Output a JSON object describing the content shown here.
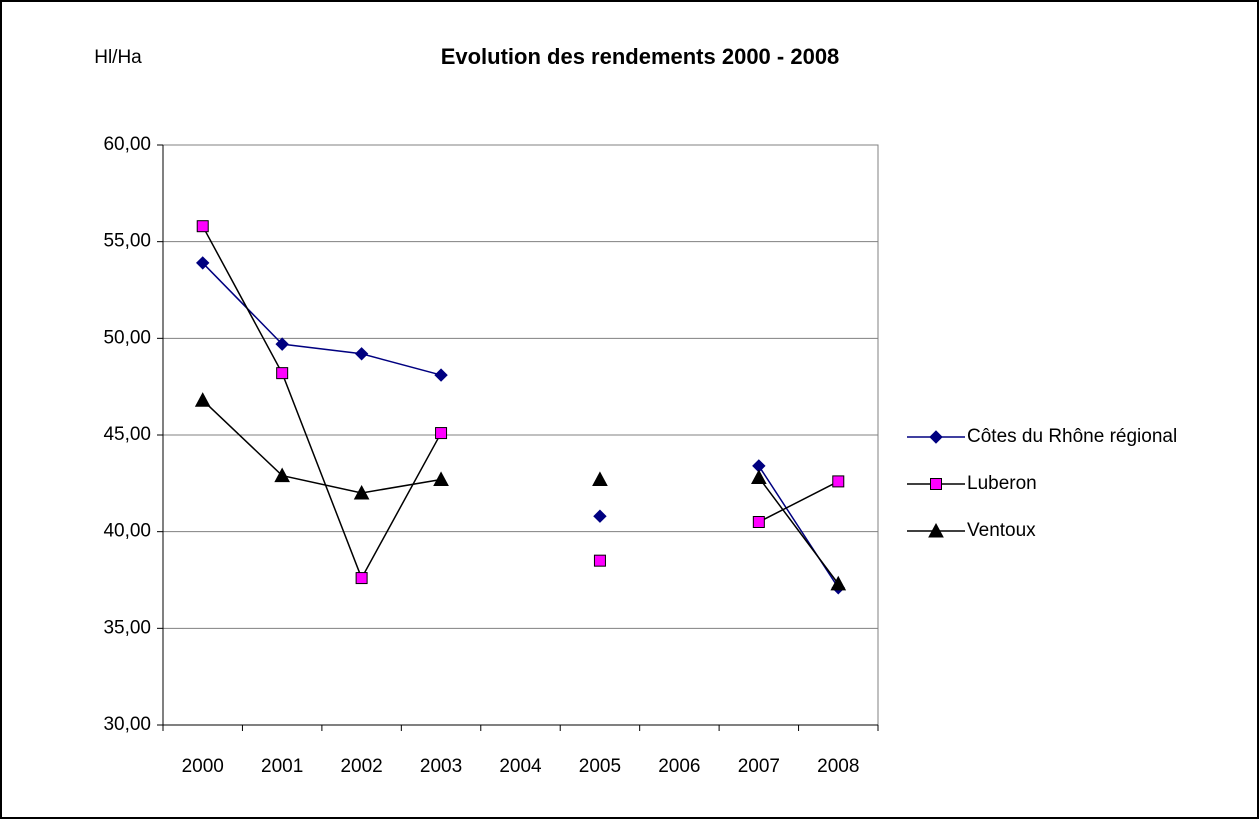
{
  "chart_data": {
    "type": "line",
    "title": "Evolution des rendements 2000 - 2008",
    "y_label": "Hl/Ha",
    "categories": [
      "2000",
      "2001",
      "2002",
      "2003",
      "2004",
      "2005",
      "2006",
      "2007",
      "2008"
    ],
    "series": [
      {
        "name": "Côtes du Rhône régional",
        "color": "#000080",
        "marker": "diamond",
        "values": [
          53.9,
          49.7,
          49.2,
          48.1,
          null,
          40.8,
          null,
          43.4,
          37.1
        ]
      },
      {
        "name": "Luberon",
        "color": "#ff00ff",
        "marker": "square",
        "values": [
          55.8,
          48.2,
          37.6,
          45.1,
          null,
          38.5,
          null,
          40.5,
          42.6
        ]
      },
      {
        "name": "Ventoux",
        "color": "#000000",
        "marker": "triangle",
        "values": [
          46.8,
          42.9,
          42.0,
          42.7,
          null,
          42.7,
          null,
          42.8,
          37.3
        ]
      }
    ],
    "ylim": [
      30,
      60
    ],
    "yticks": [
      {
        "value": 30,
        "label": "30,00"
      },
      {
        "value": 35,
        "label": "35,00"
      },
      {
        "value": 40,
        "label": "40,00"
      },
      {
        "value": 45,
        "label": "45,00"
      },
      {
        "value": 50,
        "label": "50,00"
      },
      {
        "value": 55,
        "label": "55,00"
      },
      {
        "value": 60,
        "label": "60,00"
      }
    ],
    "grid": true,
    "legend": "right"
  }
}
